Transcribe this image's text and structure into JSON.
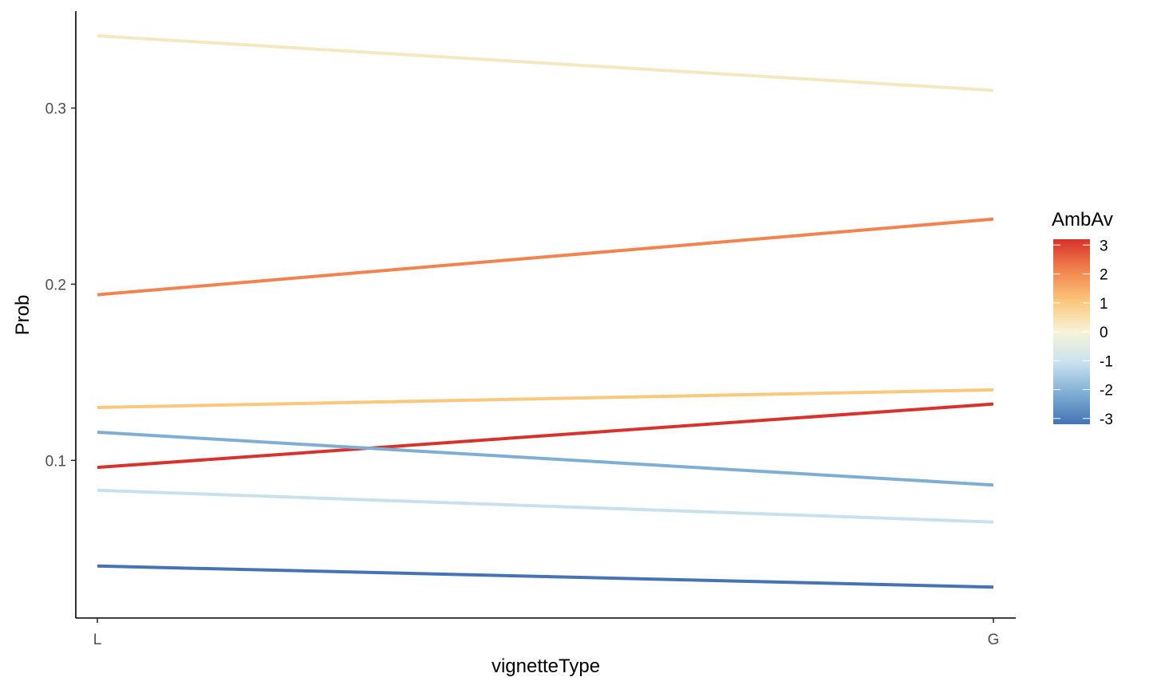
{
  "chart_data": {
    "type": "line",
    "xlabel": "vignetteType",
    "ylabel": "Prob",
    "categories": [
      "L",
      "G"
    ],
    "ylim": [
      0.0105,
      0.355
    ],
    "yticks": [
      0.1,
      0.2,
      0.3
    ],
    "ytick_labels": [
      "0.1",
      "0.2",
      "0.3"
    ],
    "grid": false,
    "series": [
      {
        "ambav": 0,
        "color": "#f4e8c1",
        "values": [
          0.341,
          0.31
        ]
      },
      {
        "ambav": 2,
        "color": "#f2834e",
        "values": [
          0.194,
          0.237
        ]
      },
      {
        "ambav": 1,
        "color": "#fbc77b",
        "values": [
          0.13,
          0.14
        ]
      },
      {
        "ambav": 3,
        "color": "#d7322c",
        "values": [
          0.096,
          0.132
        ]
      },
      {
        "ambav": -2,
        "color": "#7faed5",
        "values": [
          0.116,
          0.086
        ]
      },
      {
        "ambav": -1,
        "color": "#c9e1ee",
        "values": [
          0.083,
          0.065
        ]
      },
      {
        "ambav": -3,
        "color": "#4474b3",
        "values": [
          0.04,
          0.028
        ]
      }
    ],
    "legend": {
      "title": "AmbAv",
      "position": "right",
      "range": [
        -3.2,
        3.2
      ],
      "breaks": [
        3,
        2,
        1,
        0,
        -1,
        -2,
        -3
      ],
      "labels": [
        "3",
        "2",
        "1",
        "0",
        "-1",
        "-2",
        "-3"
      ],
      "gradient": [
        "#4474b3",
        "#7faed5",
        "#c9e1ee",
        "#f7f3d8",
        "#fbc77b",
        "#f2834e",
        "#d7322c"
      ]
    }
  }
}
